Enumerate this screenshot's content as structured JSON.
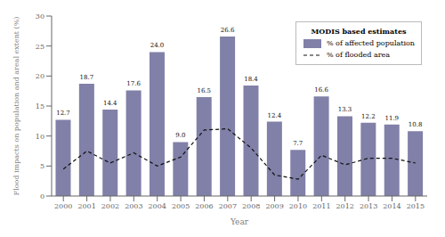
{
  "chart_data": {
    "type": "bar",
    "xlabel": "Year",
    "ylabel": "Flood impacts on population and areal extent (%)",
    "legend_title": "MODIS based estimates",
    "legend": "upper right",
    "grid": false,
    "categories": [
      "2000",
      "2001",
      "2002",
      "2003",
      "2004",
      "2005",
      "2006",
      "2007",
      "2008",
      "2009",
      "2010",
      "2011",
      "2012",
      "2013",
      "2014",
      "2015"
    ],
    "ylim": [
      0,
      30
    ],
    "yticks": [
      0,
      5,
      10,
      15,
      20,
      25,
      30
    ],
    "series": [
      {
        "name": "% of affected population",
        "type": "bar",
        "color": "#8080a8",
        "data_labels": true,
        "values": [
          12.7,
          18.7,
          14.4,
          17.6,
          24.0,
          9.0,
          16.5,
          26.6,
          18.4,
          12.4,
          7.7,
          16.6,
          13.3,
          12.2,
          11.9,
          10.8
        ],
        "value_labels": [
          "12.7",
          "18.7",
          "14.4",
          "17.6",
          "24.0",
          "9.0",
          "16.5",
          "26.6",
          "18.4",
          "12.4",
          "7.7",
          "16.6",
          "13.3",
          "12.2",
          "11.9",
          "10.8"
        ]
      },
      {
        "name": "% of flooded area",
        "type": "line",
        "color": "#111111",
        "line_style": "dashed",
        "values": [
          4.5,
          7.5,
          5.5,
          7.2,
          5.0,
          6.5,
          11.0,
          11.2,
          8.0,
          3.5,
          2.8,
          6.8,
          5.2,
          6.3,
          6.3,
          5.5
        ]
      }
    ]
  }
}
